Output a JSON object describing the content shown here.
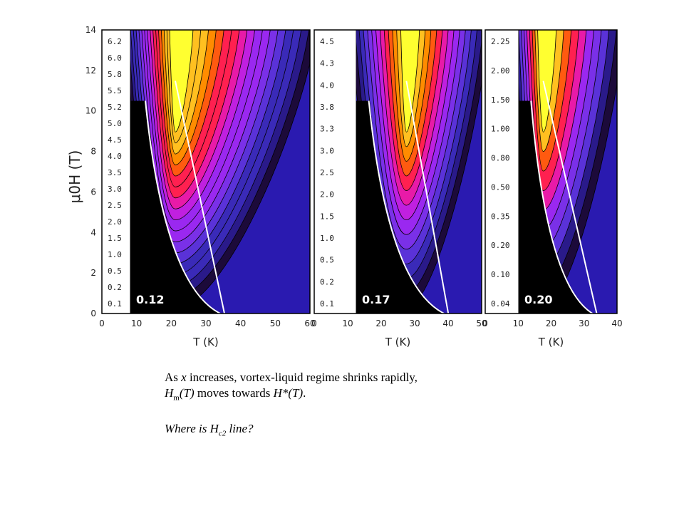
{
  "chart_data": [
    {
      "type": "heatmap",
      "concentration_label": "0.12",
      "xlabel": "T (K)",
      "ylabel": "μ0H (T)",
      "xlim": [
        0,
        60
      ],
      "ylim": [
        0,
        14
      ],
      "x_ticks": [
        "0",
        "10",
        "20",
        "30",
        "40",
        "50",
        "60"
      ],
      "y_ticks": [
        "0",
        "2",
        "4",
        "6",
        "8",
        "10",
        "12",
        "14"
      ],
      "contour_levels": [
        "6.2",
        "6.0",
        "5.8",
        "5.5",
        "5.2",
        "5.0",
        "4.5",
        "4.0",
        "3.5",
        "3.0",
        "2.5",
        "2.0",
        "1.5",
        "1.0",
        "0.5",
        "0.2",
        "0.1"
      ],
      "peak_T": 15,
      "onset_T": 5,
      "boundary_T_at_H0": 30
    },
    {
      "type": "heatmap",
      "concentration_label": "0.17",
      "xlabel": "T (K)",
      "xlim": [
        0,
        50
      ],
      "ylim": [
        0,
        14
      ],
      "x_ticks": [
        "0",
        "10",
        "20",
        "30",
        "40",
        "50"
      ],
      "contour_levels": [
        "4.5",
        "4.3",
        "4.0",
        "3.8",
        "3.3",
        "3.0",
        "2.5",
        "2.0",
        "1.5",
        "1.0",
        "0.5",
        "0.2",
        "0.1"
      ],
      "peak_T": 20,
      "onset_T": 5,
      "boundary_T_at_H0": 35
    },
    {
      "type": "heatmap",
      "concentration_label": "0.20",
      "xlabel": "T (K)",
      "xlim": [
        0,
        40
      ],
      "ylim": [
        0,
        14
      ],
      "x_ticks": [
        "0",
        "10",
        "20",
        "30",
        "40"
      ],
      "contour_levels": [
        "2.25",
        "2.00",
        "1.50",
        "1.00",
        "0.80",
        "0.50",
        "0.35",
        "0.20",
        "0.10",
        "0.04"
      ],
      "peak_T": 10,
      "onset_T": 5,
      "boundary_T_at_H0": 30
    }
  ],
  "caption": {
    "line1_a": "As ",
    "line1_x": "x",
    "line1_b": " increases, vortex-liquid regime shrinks rapidly,",
    "line2_H": "H",
    "line2_sub": "m",
    "line2_T": "(T)",
    "line2_mid": " moves towards ",
    "line2_Hstar": "H*(T)",
    "line2_end": ".",
    "line3_a": "Where is H",
    "line3_sub": "c2",
    "line3_b": " line?"
  }
}
